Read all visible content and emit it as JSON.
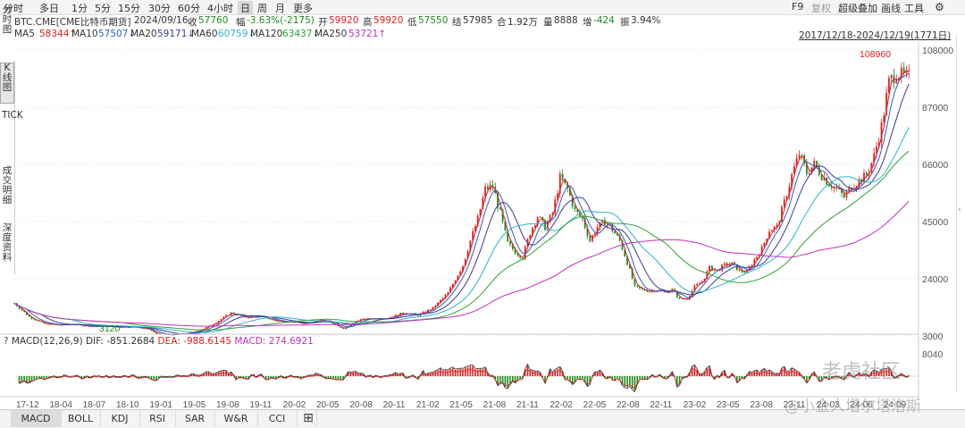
{
  "toolbar": {
    "periods": [
      "分时",
      "多日",
      "1分",
      "5分",
      "15分",
      "30分",
      "60分",
      "4小时",
      "日",
      "周",
      "月",
      "更多"
    ],
    "active": "日",
    "right": [
      "F9",
      "复权",
      "超级叠加",
      "画线",
      "工具"
    ]
  },
  "info": {
    "name": "BTC.CME[CME比特币期货]",
    "date": "2024/09/16",
    "price_label": "收",
    "price": "57760",
    "change_label": "幅",
    "change": "-3.63%(-2175)",
    "open_label": "开",
    "open": "59920",
    "high_label": "高",
    "high": "59920",
    "low_label": "低",
    "low": "57550",
    "settle_label": "结",
    "settle": "57985",
    "vol_label": "合",
    "vol": "1.92万",
    "amt_label": "量",
    "amt": "8888",
    "oi_label": "增",
    "oi": "-424",
    "amp_label": "振",
    "amp": "3.94%"
  },
  "ma": {
    "items": [
      {
        "label": "MA5",
        "value": "58344↑",
        "color": "#e02020"
      },
      {
        "label": "MA10",
        "value": "57507↓",
        "color": "#2a5fcc"
      },
      {
        "label": "MA20",
        "value": "59171↓",
        "color": "#3a3a9c"
      },
      {
        "label": "MA60",
        "value": "60759↓",
        "color": "#2bb5c8"
      },
      {
        "label": "MA120",
        "value": "63437↓",
        "color": "#33a033"
      },
      {
        "label": "MA250",
        "value": "53721↑",
        "color": "#c030c0"
      }
    ],
    "range": "2017/12/18-2024/12/19(1771日)"
  },
  "leftbar": {
    "items": [
      "分时图",
      "K线图",
      "TICK",
      "成交明细",
      "深度资料"
    ]
  },
  "chart_data": {
    "type": "candlestick",
    "yticks": [
      "108000",
      "87000",
      "66000",
      "45000",
      "24000",
      "3000"
    ],
    "xticks": [
      "17-12",
      "18-04",
      "18-07",
      "18-10",
      "19-01",
      "19-05",
      "19-08",
      "19-11",
      "20-02",
      "20-05",
      "20-08",
      "20-11",
      "21-02",
      "21-05",
      "21-08",
      "21-11",
      "22-02",
      "22-05",
      "22-08",
      "22-11",
      "23-02",
      "23-05",
      "23-08",
      "23-11",
      "24-03",
      "24-06",
      "24-09"
    ],
    "max_label": "108960",
    "min_label": "3120",
    "series_close": [
      [
        0,
        15000
      ],
      [
        2,
        10000
      ],
      [
        4,
        7500
      ],
      [
        6,
        7000
      ],
      [
        8,
        7300
      ],
      [
        10,
        6600
      ],
      [
        12,
        6500
      ],
      [
        14,
        6300
      ],
      [
        16,
        6400
      ],
      [
        18,
        5500
      ],
      [
        19,
        3800
      ],
      [
        21,
        3500
      ],
      [
        23,
        3900
      ],
      [
        25,
        5200
      ],
      [
        27,
        8000
      ],
      [
        29,
        11500
      ],
      [
        31,
        9800
      ],
      [
        33,
        10200
      ],
      [
        35,
        8500
      ],
      [
        37,
        8300
      ],
      [
        39,
        7400
      ],
      [
        41,
        9200
      ],
      [
        43,
        7100
      ],
      [
        44,
        5500
      ],
      [
        46,
        8900
      ],
      [
        48,
        9400
      ],
      [
        50,
        9600
      ],
      [
        52,
        11500
      ],
      [
        54,
        10700
      ],
      [
        56,
        13300
      ],
      [
        58,
        18700
      ],
      [
        60,
        29000
      ],
      [
        61,
        38000
      ],
      [
        62,
        46000
      ],
      [
        63,
        57000
      ],
      [
        64,
        58000
      ],
      [
        65,
        48000
      ],
      [
        66,
        37000
      ],
      [
        67,
        34000
      ],
      [
        68,
        32000
      ],
      [
        69,
        41000
      ],
      [
        70,
        47000
      ],
      [
        71,
        43000
      ],
      [
        72,
        48000
      ],
      [
        73,
        61000
      ],
      [
        74,
        57000
      ],
      [
        75,
        49000
      ],
      [
        76,
        46000
      ],
      [
        77,
        38000
      ],
      [
        78,
        43000
      ],
      [
        79,
        45000
      ],
      [
        80,
        42000
      ],
      [
        81,
        38000
      ],
      [
        82,
        30000
      ],
      [
        83,
        21000
      ],
      [
        84,
        20000
      ],
      [
        85,
        19500
      ],
      [
        86,
        20000
      ],
      [
        87,
        19000
      ],
      [
        88,
        20000
      ],
      [
        89,
        16500
      ],
      [
        90,
        16800
      ],
      [
        91,
        21000
      ],
      [
        92,
        23000
      ],
      [
        93,
        28000
      ],
      [
        94,
        27000
      ],
      [
        95,
        29000
      ],
      [
        96,
        29500
      ],
      [
        97,
        27000
      ],
      [
        98,
        26500
      ],
      [
        99,
        31000
      ],
      [
        100,
        35000
      ],
      [
        101,
        42000
      ],
      [
        102,
        43000
      ],
      [
        103,
        52000
      ],
      [
        104,
        62000
      ],
      [
        105,
        70000
      ],
      [
        106,
        63000
      ],
      [
        107,
        66000
      ],
      [
        108,
        62000
      ],
      [
        109,
        59000
      ],
      [
        110,
        57000
      ],
      [
        111,
        54000
      ],
      [
        112,
        58000
      ],
      [
        113,
        60000
      ],
      [
        114,
        62000
      ],
      [
        115,
        69000
      ],
      [
        116,
        80000
      ],
      [
        117,
        96000
      ],
      [
        118,
        100000
      ],
      [
        119,
        98000
      ]
    ],
    "macd": {
      "label": "MACD(12,26,9)",
      "dif_label": "DIF:",
      "dif": "-851.2684",
      "dea_label": "DEA:",
      "dea": "-988.6145",
      "macd_label": "MACD:",
      "macd": "274.6921",
      "ytick": "8040"
    }
  },
  "bottom": {
    "tabs": [
      "MACD",
      "BOLL",
      "KDJ",
      "RSI",
      "SAR",
      "W&R",
      "CCI",
      "⊞"
    ]
  },
  "watermark": {
    "line1": "老虎社区",
    "line2": "@小金人塔尔塔洛斯"
  }
}
